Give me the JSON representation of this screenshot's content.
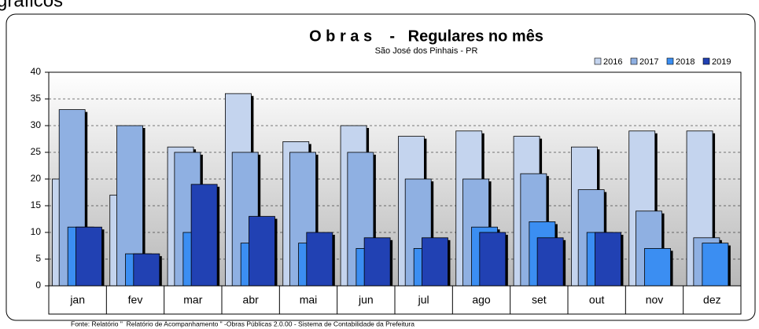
{
  "header": "gráficos",
  "footer": "Fonte: Relatório \"  Relatório de Acompanhamento \" -Obras Públicas 2.0.00 - Sistema de Contabilidade da Prefeitura",
  "chart_data": {
    "type": "bar",
    "title": "O b r a s    -   Regulares no mês",
    "subtitle": "São José dos Pinhais - PR",
    "categories": [
      "jan",
      "fev",
      "mar",
      "abr",
      "mai",
      "jun",
      "jul",
      "ago",
      "set",
      "out",
      "nov",
      "dez"
    ],
    "series": [
      {
        "name": "2016",
        "color": "#c4d4ee",
        "values": [
          20,
          17,
          26,
          36,
          27,
          30,
          28,
          29,
          28,
          26,
          29,
          29
        ]
      },
      {
        "name": "2017",
        "color": "#8fb0e2",
        "values": [
          33,
          30,
          25,
          25,
          25,
          25,
          20,
          20,
          21,
          18,
          14,
          9
        ]
      },
      {
        "name": "2018",
        "color": "#3b8ef2",
        "values": [
          11,
          6,
          10,
          8,
          8,
          7,
          7,
          11,
          12,
          10,
          7,
          8
        ]
      },
      {
        "name": "2019",
        "color": "#2141b3",
        "values": [
          11,
          6,
          19,
          13,
          10,
          9,
          9,
          10,
          9,
          10,
          null,
          null
        ]
      }
    ],
    "ylim": [
      0,
      40
    ],
    "yticks": [
      0,
      5,
      10,
      15,
      20,
      25,
      30,
      35,
      40
    ],
    "grid": true,
    "legend": "top-right"
  }
}
